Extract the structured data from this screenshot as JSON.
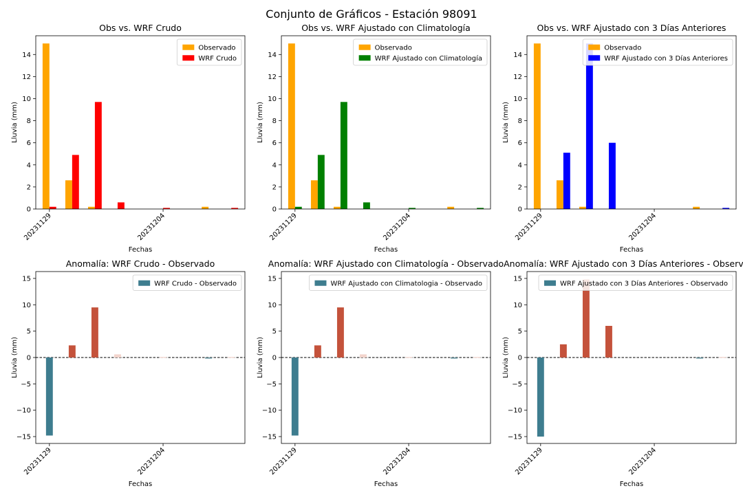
{
  "suptitle": "Conjunto de Gráficos - Estación 98091",
  "colors": {
    "observado": "#FFA500",
    "wrf_crudo": "#FF0000",
    "wrf_clima": "#008000",
    "wrf_3dias": "#0000FF",
    "anom_negative": "#3E7D8F",
    "anom_positive": "#C4523B",
    "anom_small_positive": "#F2D4CC",
    "anom_small_negative": "#5A8A96"
  },
  "chart_data": [
    {
      "type": "bar",
      "title": "Obs vs. WRF Crudo",
      "xlabel": "Fechas",
      "ylabel": "Lluvia (mm)",
      "ylim": [
        0,
        15.7
      ],
      "yticks": [
        0,
        2,
        4,
        6,
        8,
        10,
        12,
        14
      ],
      "xtick_labels": [
        "20231129",
        "20231204"
      ],
      "xtick_positions": [
        0,
        5
      ],
      "x": [
        0,
        1,
        2,
        3,
        4,
        5,
        6,
        7,
        8
      ],
      "legend_position": "upper right",
      "series": [
        {
          "name": "Observado",
          "color_key": "observado",
          "values": [
            15.0,
            2.6,
            0.2,
            0.0,
            0.0,
            0.0,
            0.0,
            0.2,
            0.0
          ]
        },
        {
          "name": "WRF Crudo",
          "color_key": "wrf_crudo",
          "values": [
            0.2,
            4.9,
            9.7,
            0.6,
            0.0,
            0.1,
            0.0,
            0.0,
            0.1
          ]
        }
      ]
    },
    {
      "type": "bar",
      "title": "Obs vs. WRF Ajustado con Climatología",
      "xlabel": "Fechas",
      "ylabel": "Lluvia (mm)",
      "ylim": [
        0,
        15.7
      ],
      "yticks": [
        0,
        2,
        4,
        6,
        8,
        10,
        12,
        14
      ],
      "xtick_labels": [
        "20231129",
        "20231204"
      ],
      "xtick_positions": [
        0,
        5
      ],
      "x": [
        0,
        1,
        2,
        3,
        4,
        5,
        6,
        7,
        8
      ],
      "legend_position": "upper right",
      "series": [
        {
          "name": "Observado",
          "color_key": "observado",
          "values": [
            15.0,
            2.6,
            0.2,
            0.0,
            0.0,
            0.0,
            0.0,
            0.2,
            0.0
          ]
        },
        {
          "name": "WRF Ajustado con Climatología",
          "color_key": "wrf_clima",
          "values": [
            0.2,
            4.9,
            9.7,
            0.6,
            0.0,
            0.1,
            0.0,
            0.0,
            0.1
          ]
        }
      ]
    },
    {
      "type": "bar",
      "title": "Obs vs. WRF Ajustado con 3 Días Anteriores",
      "xlabel": "Fechas",
      "ylabel": "Lluvia (mm)",
      "ylim": [
        0,
        15.7
      ],
      "yticks": [
        0,
        2,
        4,
        6,
        8,
        10,
        12,
        14
      ],
      "xtick_labels": [
        "20231129",
        "20231204"
      ],
      "xtick_positions": [
        0,
        5
      ],
      "x": [
        0,
        1,
        2,
        3,
        4,
        5,
        6,
        7,
        8
      ],
      "legend_position": "upper right",
      "series": [
        {
          "name": "Observado",
          "color_key": "observado",
          "values": [
            15.0,
            2.6,
            0.2,
            0.0,
            0.0,
            0.0,
            0.0,
            0.2,
            0.0
          ]
        },
        {
          "name": "WRF Ajustado con 3 Días Anteriores",
          "color_key": "wrf_3dias",
          "values": [
            0.0,
            5.1,
            15.0,
            6.0,
            0.0,
            0.0,
            0.0,
            0.0,
            0.1
          ]
        }
      ]
    },
    {
      "type": "bar",
      "title": "Anomalía: WRF Crudo - Observado",
      "xlabel": "Fechas",
      "ylabel": "Lluvia (mm)",
      "ylim": [
        -16.3,
        16.3
      ],
      "yticks": [
        -15,
        -10,
        -5,
        0,
        5,
        10,
        15
      ],
      "xtick_labels": [
        "20231129",
        "20231204"
      ],
      "xtick_positions": [
        0,
        5
      ],
      "x": [
        0,
        1,
        2,
        3,
        4,
        5,
        6,
        7,
        8
      ],
      "legend_position": "upper right",
      "zero_line": true,
      "series": [
        {
          "name": "WRF Crudo - Observado",
          "values": [
            -14.8,
            2.3,
            9.5,
            0.6,
            0.0,
            0.1,
            0.0,
            -0.2,
            0.1
          ]
        }
      ]
    },
    {
      "type": "bar",
      "title": "Anomalía: WRF Ajustado con Climatología - Observado",
      "xlabel": "Fechas",
      "ylabel": "Lluvia (mm)",
      "ylim": [
        -16.3,
        16.3
      ],
      "yticks": [
        -15,
        -10,
        -5,
        0,
        5,
        10,
        15
      ],
      "xtick_labels": [
        "20231129",
        "20231204"
      ],
      "xtick_positions": [
        0,
        5
      ],
      "x": [
        0,
        1,
        2,
        3,
        4,
        5,
        6,
        7,
        8
      ],
      "legend_position": "upper right",
      "zero_line": true,
      "series": [
        {
          "name": "WRF Ajustado con Climatologia - Observado",
          "values": [
            -14.8,
            2.3,
            9.5,
            0.6,
            0.0,
            0.1,
            0.0,
            -0.2,
            0.1
          ]
        }
      ]
    },
    {
      "type": "bar",
      "title": "Anomalía: WRF Ajustado con 3 Días Anteriores - Observado",
      "xlabel": "Fechas",
      "ylabel": "Lluvia (mm)",
      "ylim": [
        -16.3,
        16.3
      ],
      "yticks": [
        -15,
        -10,
        -5,
        0,
        5,
        10,
        15
      ],
      "xtick_labels": [
        "20231129",
        "20231204"
      ],
      "xtick_positions": [
        0,
        5
      ],
      "x": [
        0,
        1,
        2,
        3,
        4,
        5,
        6,
        7,
        8
      ],
      "legend_position": "upper right",
      "zero_line": true,
      "series": [
        {
          "name": "WRF Ajustado con 3 Días Anteriores - Observado",
          "values": [
            -15.0,
            2.5,
            14.8,
            6.0,
            0.0,
            0.0,
            0.0,
            -0.2,
            0.1
          ]
        }
      ]
    }
  ]
}
